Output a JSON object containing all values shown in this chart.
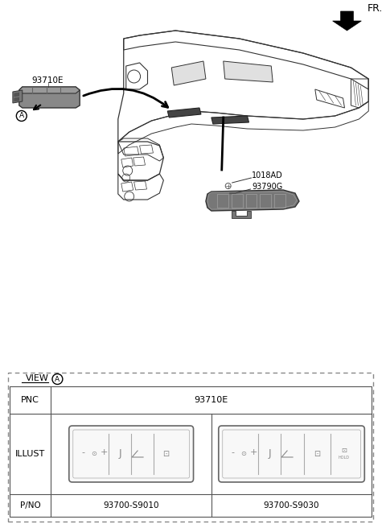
{
  "bg_color": "#ffffff",
  "label_93710E": "93710E",
  "label_A": "A",
  "label_1018AD": "1018AD",
  "label_93790G": "93790G",
  "label_FR": "FR.",
  "view_label": "VIEW",
  "view_circle_label": "A",
  "pnc_label": "PNC",
  "pnc_value": "93710E",
  "illust_label": "ILLUST",
  "pno_label": "P/NO",
  "pno_left": "93700-S9010",
  "pno_right": "93700-S9030",
  "dark_gray": "#555555",
  "med_gray": "#888888",
  "part_gray": "#888888",
  "part_dark": "#666666",
  "line_color": "#333333"
}
